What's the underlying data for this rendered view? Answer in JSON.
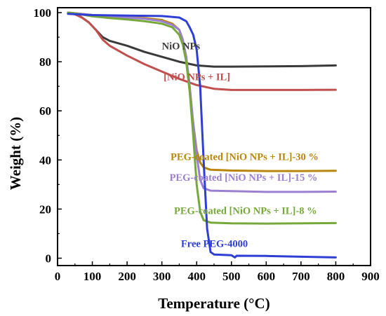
{
  "chart_data": {
    "type": "line",
    "xlabel": "Temperature (°C)",
    "ylabel": "Weight (%)",
    "xlim": [
      0,
      900
    ],
    "ylim": [
      -3,
      102
    ],
    "xticks": [
      0,
      100,
      200,
      300,
      400,
      500,
      600,
      700,
      800,
      900
    ],
    "yticks": [
      0,
      20,
      40,
      60,
      80,
      100
    ],
    "grid": false,
    "legend": "inline-labels",
    "series": [
      {
        "name": "NiO NPs",
        "color": "#3a3a3a",
        "label_at": [
          300,
          85
        ],
        "x": [
          30,
          50,
          70,
          90,
          110,
          130,
          150,
          200,
          250,
          300,
          350,
          400,
          450,
          500,
          600,
          700,
          800
        ],
        "y": [
          100,
          99.5,
          98,
          96,
          93,
          90,
          88.5,
          86.5,
          84,
          82,
          80,
          78.5,
          78,
          78,
          78.1,
          78.2,
          78.5
        ]
      },
      {
        "name": "[NiO NPs + IL]",
        "color": "#c0504d",
        "label_at": [
          305,
          72.5
        ],
        "x": [
          30,
          50,
          70,
          90,
          110,
          130,
          150,
          200,
          250,
          300,
          350,
          400,
          450,
          500,
          600,
          700,
          800
        ],
        "y": [
          100,
          99.3,
          98,
          96,
          93,
          89,
          86.5,
          82.5,
          79,
          76,
          73,
          70.5,
          69,
          68.5,
          68.5,
          68.5,
          68.6
        ]
      },
      {
        "name": "PEG-coated [NiO NPs + IL]-30 %",
        "color": "#b8860b",
        "label_at": [
          325,
          40
        ],
        "x": [
          30,
          60,
          100,
          150,
          200,
          250,
          300,
          330,
          350,
          360,
          370,
          380,
          390,
          400,
          410,
          420,
          440,
          500,
          600,
          700,
          800
        ],
        "y": [
          100,
          99.6,
          99,
          98.5,
          98,
          97.8,
          97,
          95.5,
          93,
          89,
          80,
          68,
          55,
          44,
          39,
          37,
          36,
          35.7,
          35.5,
          35.5,
          35.6
        ]
      },
      {
        "name": "PEG-coated [NiO NPs + IL]-15 %",
        "color": "#9b7fd0",
        "label_at": [
          322,
          31.5
        ],
        "x": [
          30,
          60,
          100,
          150,
          200,
          250,
          300,
          330,
          350,
          360,
          370,
          380,
          390,
          400,
          410,
          420,
          440,
          500,
          600,
          700,
          800
        ],
        "y": [
          100,
          99.6,
          99,
          98.5,
          98,
          97.5,
          96.5,
          95,
          93,
          89,
          82,
          70,
          55,
          42,
          32,
          28.5,
          27.5,
          27.3,
          27,
          27,
          27.1
        ]
      },
      {
        "name": "PEG-coated [NiO NPs + IL]-8 %",
        "color": "#77a83a",
        "label_at": [
          335,
          18
        ],
        "x": [
          30,
          60,
          100,
          150,
          200,
          250,
          300,
          330,
          350,
          360,
          370,
          380,
          390,
          400,
          410,
          420,
          440,
          500,
          600,
          700,
          800
        ],
        "y": [
          100,
          99.5,
          98.5,
          97.8,
          97.2,
          96.5,
          95.5,
          94,
          91,
          87,
          80,
          68,
          50,
          30,
          19,
          15.5,
          14.5,
          14.2,
          14.1,
          14.2,
          14.3
        ]
      },
      {
        "name": "Free PEG-4000",
        "color": "#2f3fd6",
        "label_at": [
          355,
          4.5
        ],
        "x": [
          30,
          100,
          200,
          300,
          350,
          370,
          380,
          390,
          400,
          410,
          420,
          430,
          440,
          450,
          500,
          510,
          515,
          600,
          700,
          800
        ],
        "y": [
          99.5,
          99,
          98.8,
          98.6,
          98,
          96.5,
          94,
          91,
          85,
          70,
          40,
          12,
          2.5,
          1.5,
          1.2,
          0.3,
          1,
          0.9,
          0.6,
          0.3
        ]
      }
    ]
  }
}
